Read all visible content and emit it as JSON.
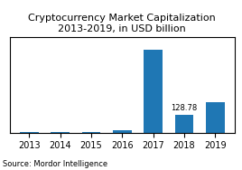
{
  "chart_data": {
    "type": "bar",
    "title": "Cryptocurrency Market Capitalization 2013-2019, in USD billion",
    "categories": [
      "2013",
      "2014",
      "2015",
      "2016",
      "2017",
      "2018",
      "2019"
    ],
    "values": [
      1.5,
      4.0,
      3.2,
      14.0,
      590.0,
      128.78,
      220.0
    ],
    "value_labels": [
      null,
      null,
      null,
      null,
      null,
      "128.78",
      null
    ],
    "ylim": [
      0,
      678.5
    ],
    "yticks": [],
    "tick_labels": "x",
    "grid": false,
    "annotations": [
      "Source: Mordor Intelligence"
    ]
  }
}
